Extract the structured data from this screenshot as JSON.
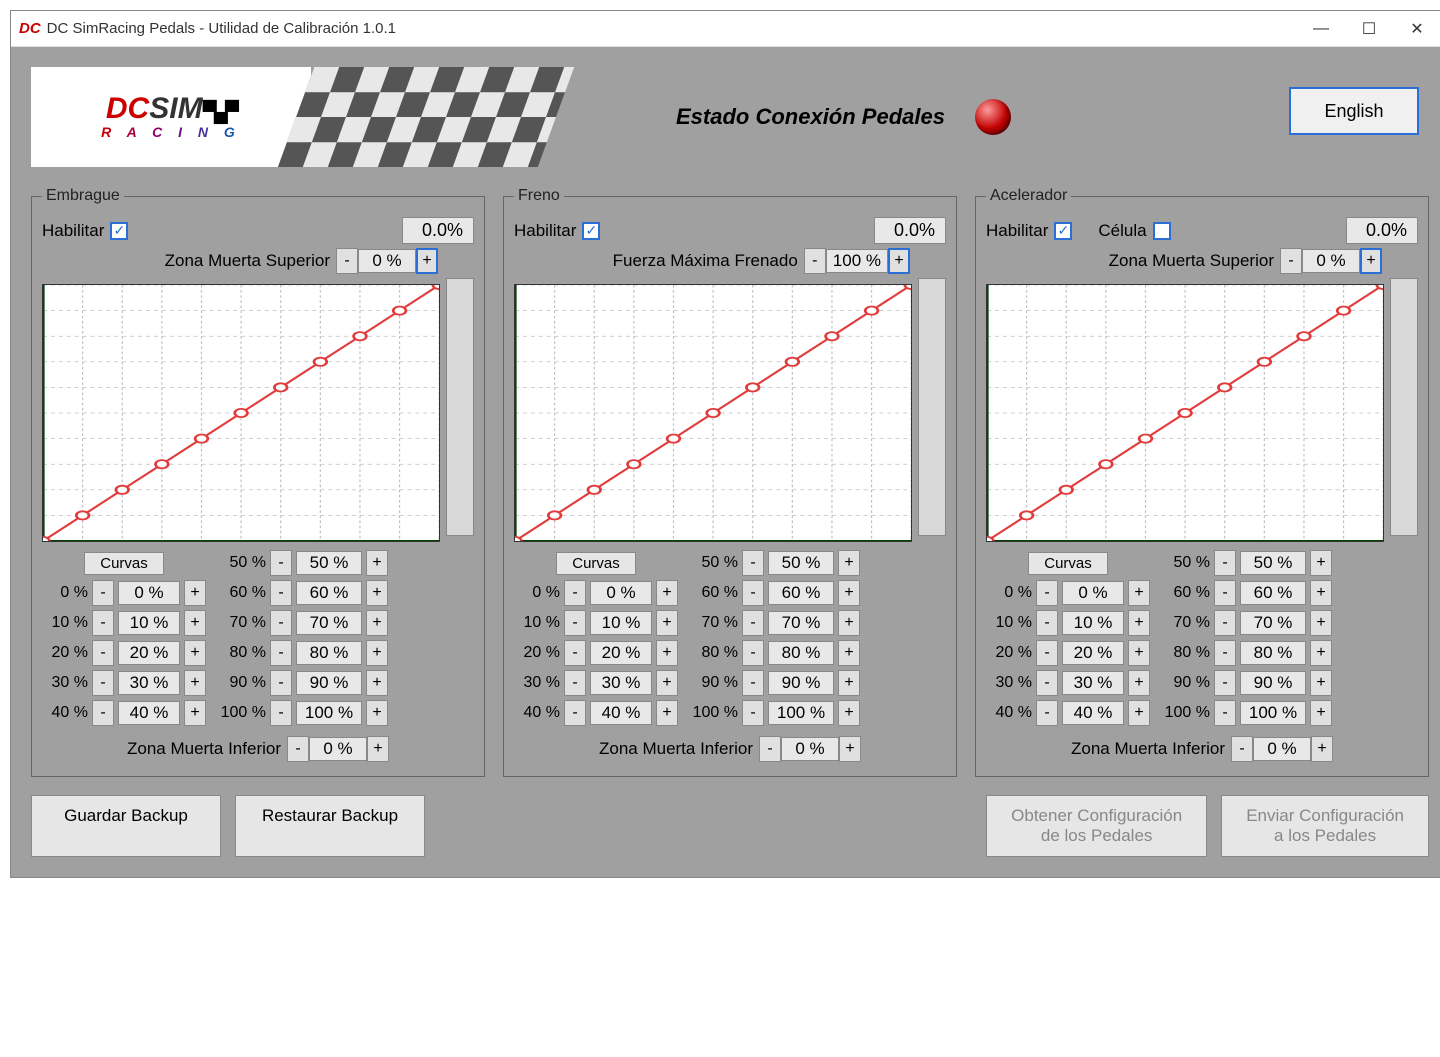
{
  "window": {
    "title": "DC SimRacing Pedals - Utilidad de Calibración 1.0.1",
    "logo_prefix": "DC"
  },
  "header": {
    "logo_dc": "DC",
    "logo_sim": "SIM",
    "logo_flag": "▀▄▀",
    "logo_sub": "R A C I N G",
    "status_label": "Estado Conexión Pedales",
    "status_color": "#c00000",
    "lang_button": "English"
  },
  "common": {
    "enable_label": "Habilitar",
    "curves_label": "Curvas",
    "deadzone_lower_label": "Zona Muerta Inferior",
    "minus": "-",
    "plus": "+",
    "chart": {
      "grid_color": "#bfbfbf",
      "axis_color": "#004400",
      "line_color": "#e23b3b",
      "point_color": "#e23b3b",
      "point_inner": "#ffffff",
      "ticks": 10,
      "points_x": [
        0,
        10,
        20,
        30,
        40,
        50,
        60,
        70,
        80,
        90,
        100
      ],
      "points_y": [
        0,
        10,
        20,
        30,
        40,
        50,
        60,
        70,
        80,
        90,
        100
      ]
    },
    "curve_left_labels": [
      "0 %",
      "10 %",
      "20 %",
      "30 %",
      "40 %"
    ],
    "curve_right_labels": [
      "50 %",
      "60 %",
      "70 %",
      "80 %",
      "90 %",
      "100 %"
    ]
  },
  "panels": [
    {
      "key": "clutch",
      "title": "Embrague",
      "enabled": true,
      "percent": "0.0%",
      "top_label": "Zona Muerta Superior",
      "top_value": "0 %",
      "show_cell": false,
      "curve_left_vals": [
        "0 %",
        "10 %",
        "20 %",
        "30 %",
        "40 %"
      ],
      "curve_right_vals": [
        "50 %",
        "60 %",
        "70 %",
        "80 %",
        "90 %",
        "100 %"
      ],
      "deadzone_lower": "0 %"
    },
    {
      "key": "brake",
      "title": "Freno",
      "enabled": true,
      "percent": "0.0%",
      "top_label": "Fuerza Máxima Frenado",
      "top_value": "100 %",
      "show_cell": false,
      "curve_left_vals": [
        "0 %",
        "10 %",
        "20 %",
        "30 %",
        "40 %"
      ],
      "curve_right_vals": [
        "50 %",
        "60 %",
        "70 %",
        "80 %",
        "90 %",
        "100 %"
      ],
      "deadzone_lower": "0 %"
    },
    {
      "key": "throttle",
      "title": "Acelerador",
      "enabled": true,
      "percent": "0.0%",
      "top_label": "Zona Muerta Superior",
      "top_value": "0 %",
      "show_cell": true,
      "cell_label": "Célula",
      "cell_checked": false,
      "curve_left_vals": [
        "0 %",
        "10 %",
        "20 %",
        "30 %",
        "40 %"
      ],
      "curve_right_vals": [
        "50 %",
        "60 %",
        "70 %",
        "80 %",
        "90 %",
        "100 %"
      ],
      "deadzone_lower": "0 %"
    }
  ],
  "buttons": {
    "save_backup": "Guardar Backup",
    "restore_backup": "Restaurar Backup",
    "get_config": "Obtener Configuración\nde los Pedales",
    "send_config": "Enviar Configuración\na los Pedales"
  }
}
